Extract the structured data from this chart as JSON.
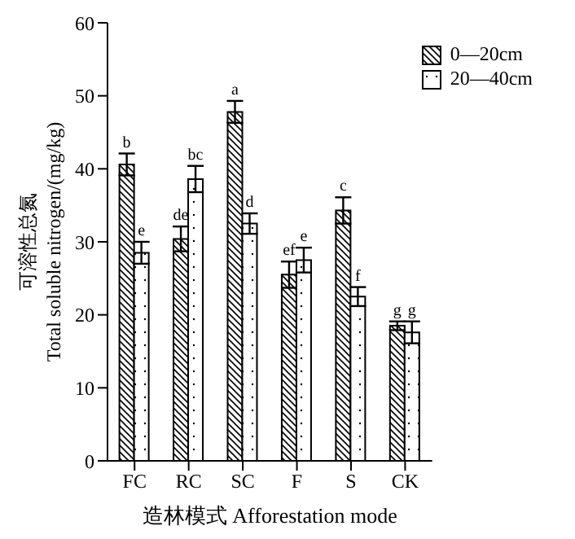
{
  "chart_data": {
    "type": "bar",
    "categories": [
      "FC",
      "RC",
      "SC",
      "F",
      "S",
      "CK"
    ],
    "series": [
      {
        "name": "0—20cm",
        "color": "#000000",
        "values": [
          40.6,
          30.4,
          47.8,
          25.5,
          34.3,
          18.5
        ],
        "errors": [
          1.5,
          1.7,
          1.5,
          1.8,
          1.8,
          0.6
        ],
        "value_labels": [
          "b",
          "de",
          "a",
          "ef",
          "c",
          "g"
        ]
      },
      {
        "name": "20—40cm",
        "color": "#000000",
        "values": [
          28.5,
          38.6,
          32.5,
          27.5,
          22.5,
          17.6
        ],
        "errors": [
          1.5,
          1.8,
          1.4,
          1.7,
          1.3,
          1.5
        ],
        "value_labels": [
          "e",
          "bc",
          "d",
          "e",
          "f",
          "g"
        ]
      }
    ],
    "xlabel": "造林模式 Afforestation mode",
    "ylabel": "可溶性总氮\nTotal soluble nitrogen/(mg/kg)",
    "ylim": [
      0,
      60
    ],
    "yticks": [
      0,
      10,
      20,
      30,
      40,
      50,
      60
    ],
    "legend": "top right",
    "grid": false
  }
}
